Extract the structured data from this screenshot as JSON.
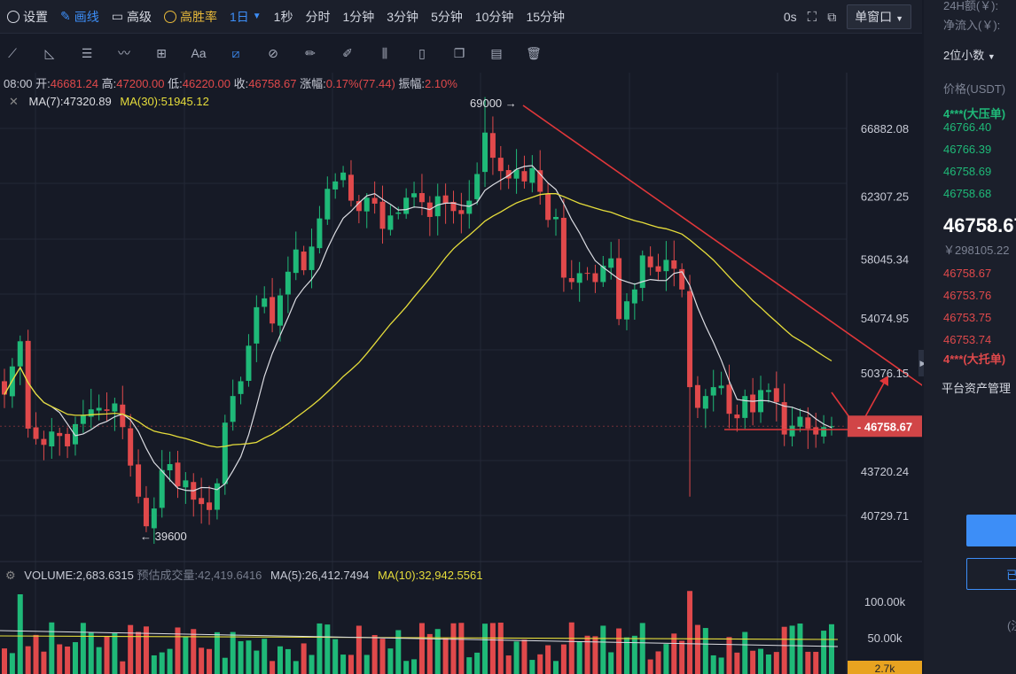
{
  "toolbar": {
    "settings_label": "设置",
    "draw_label": "画线",
    "advanced_label": "高级",
    "winrate_label": "高胜率",
    "interval_label": "1日",
    "periods": [
      "1秒",
      "分时",
      "1分钟",
      "3分钟",
      "5分钟",
      "10分钟",
      "15分钟"
    ],
    "timer_label": "0s",
    "window_mode_label": "单窗口"
  },
  "draw_tools": [
    "trend-line-icon",
    "angle-icon",
    "parallel-channel-icon",
    "wave-icon",
    "measure-box-icon",
    "text-tool-icon",
    "ruler-icon",
    "magnet-icon",
    "pencil-icon",
    "brush-icon",
    "columns-icon",
    "lock-icon",
    "copy-icon",
    "edit-icon",
    "trash-icon"
  ],
  "ohlc": {
    "time": "08:00",
    "open_label": "开:",
    "open": "46681.24",
    "high_label": "高:",
    "high": "47200.00",
    "low_label": "低:",
    "low": "46220.00",
    "close_label": "收:",
    "close": "46758.67",
    "change_label": "涨幅:",
    "change": "0.17%(77.44)",
    "amplitude_label": "振幅:",
    "amplitude": "2.10%"
  },
  "ma": {
    "ma7": "MA(7):47320.89",
    "ma30": "MA(30):51945.12"
  },
  "volume_header": {
    "volume": "VOLUME:2,683.6315",
    "estimate_label": "预估成交量:",
    "estimate_value": "42,419.6416",
    "ma5": "MA(5):26,412.7494",
    "ma10": "MA(10):32,942.5561"
  },
  "chart_data": {
    "type": "candlestick",
    "y_ticks": [
      66882.08,
      62307.25,
      58045.34,
      54074.95,
      50376.15,
      43720.24,
      40729.71
    ],
    "ylim": [
      38700,
      70000
    ],
    "last_price": 46758.67,
    "max_annotation": "69000 →",
    "min_annotation": "← 39600",
    "volume_ticks": [
      "100.00k",
      "50.00k"
    ],
    "current_volume_label": "2.7k",
    "colors": {
      "up": "#1fb978",
      "down": "#e0494b",
      "ma7": "#dcdde3",
      "ma30": "#e6dd3b",
      "drawing": "#e0373a"
    },
    "closes": [
      48900,
      50800,
      52500,
      46600,
      45900,
      45500,
      46400,
      46100,
      45400,
      46900,
      47500,
      47900,
      48000,
      47800,
      48300,
      46700,
      44100,
      42000,
      40000,
      41200,
      43800,
      44200,
      42700,
      43100,
      41800,
      41500,
      41100,
      42900,
      47000,
      48800,
      49800,
      52200,
      54800,
      55400,
      53700,
      55600,
      57200,
      58700,
      57300,
      58900,
      60800,
      62800,
      63300,
      63900,
      62000,
      61300,
      62200,
      61800,
      60100,
      61000,
      61200,
      62200,
      62500,
      61900,
      60900,
      62300,
      61800,
      61300,
      61100,
      62000,
      63800,
      66600,
      64900,
      64000,
      63500,
      64100,
      63300,
      64200,
      62600,
      60700,
      60900,
      56800,
      56500,
      57100,
      57100,
      56500,
      57600,
      58100,
      54000,
      55200,
      56000,
      58300,
      57500,
      57200,
      58000,
      57400,
      56000,
      49400,
      48000,
      48800,
      49400,
      49500,
      47600,
      47300,
      48800,
      47700,
      49200,
      49200,
      48400,
      46200,
      46800,
      47400,
      46600,
      46200,
      46700,
      46758
    ]
  },
  "right_panel": {
    "stat_24h": "24H额(￥):",
    "stat_inflow": "净流入(￥):",
    "decimals_label": "2位小数",
    "price_header": "价格(USDT)",
    "big_ask_label": "4***(大压单)",
    "asks": [
      "46766.40",
      "46766.39",
      "46758.69",
      "46758.68"
    ],
    "last_price": "46758.67",
    "cny_price": "￥298105.22",
    "bids": [
      "46758.67",
      "46753.76",
      "46753.75",
      "46753.74"
    ],
    "big_bid_label": "4***(大托单)",
    "platform_label": "平台资产管理",
    "button_text": "已",
    "footer_hint": "(注"
  }
}
